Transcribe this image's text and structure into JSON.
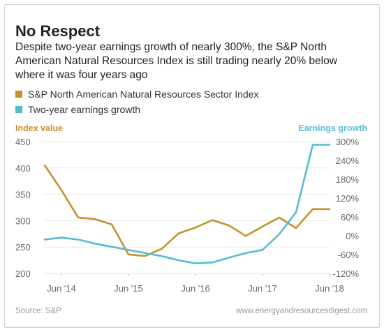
{
  "title": "No Respect",
  "subtitle": "Despite two-year earnings growth of nearly 300%, the S&P North American Natural Resources Index is still trading nearly 20% below where it was four years ago",
  "legend": {
    "items": [
      {
        "label": "S&P North American Natural Resources Sector Index",
        "color": "#c4922c"
      },
      {
        "label": "Two-year earnings growth",
        "color": "#55bcd0"
      }
    ]
  },
  "axes": {
    "left_title": "Index value",
    "right_title": "Earnings growth",
    "left_color": "#c4922c",
    "right_color": "#55bcd0"
  },
  "footer": {
    "source": "Source: S&P",
    "site": "www.energyandresourcesdigest.com"
  },
  "chart_data": {
    "type": "line",
    "x_ticks": [
      "Jun '14",
      "Jun '15",
      "Jun '16",
      "Jun '17",
      "Jun '18"
    ],
    "y_left": {
      "ticks": [
        200,
        250,
        300,
        350,
        400,
        450
      ],
      "labels": [
        "200",
        "250",
        "300",
        "350",
        "400",
        "450"
      ],
      "ylim": [
        200,
        450
      ]
    },
    "y_right": {
      "ticks": [
        -120,
        -60,
        0,
        60,
        120,
        180,
        240,
        300
      ],
      "labels": [
        "-120%",
        "-60%",
        "0%",
        "60%",
        "120%",
        "180%",
        "240%",
        "300%"
      ],
      "ylim": [
        -120,
        300
      ]
    },
    "series": [
      {
        "name": "S&P North American Natural Resources Sector Index",
        "axis": "left",
        "color": "#c4922c",
        "x": [
          "2014-03",
          "2014-06",
          "2014-09",
          "2014-12",
          "2015-03",
          "2015-06",
          "2015-09",
          "2015-12",
          "2016-03",
          "2016-06",
          "2016-09",
          "2016-12",
          "2017-03",
          "2017-06",
          "2017-09",
          "2017-12",
          "2018-03",
          "2018-06"
        ],
        "values": [
          405,
          358,
          306,
          303,
          293,
          236,
          233,
          247,
          276,
          287,
          301,
          291,
          271,
          289,
          306,
          286,
          322,
          322
        ]
      },
      {
        "name": "Two-year earnings growth",
        "axis": "right",
        "color": "#55bcd0",
        "x": [
          "2014-03",
          "2014-06",
          "2014-09",
          "2014-12",
          "2015-03",
          "2015-06",
          "2015-09",
          "2015-12",
          "2016-03",
          "2016-06",
          "2016-09",
          "2016-12",
          "2017-03",
          "2017-06",
          "2017-09",
          "2017-12",
          "2018-03",
          "2018-06"
        ],
        "values": [
          -12,
          -6,
          -12,
          -25,
          -35,
          -45,
          -55,
          -65,
          -78,
          -88,
          -85,
          -70,
          -55,
          -45,
          5,
          75,
          290,
          290
        ]
      }
    ]
  }
}
